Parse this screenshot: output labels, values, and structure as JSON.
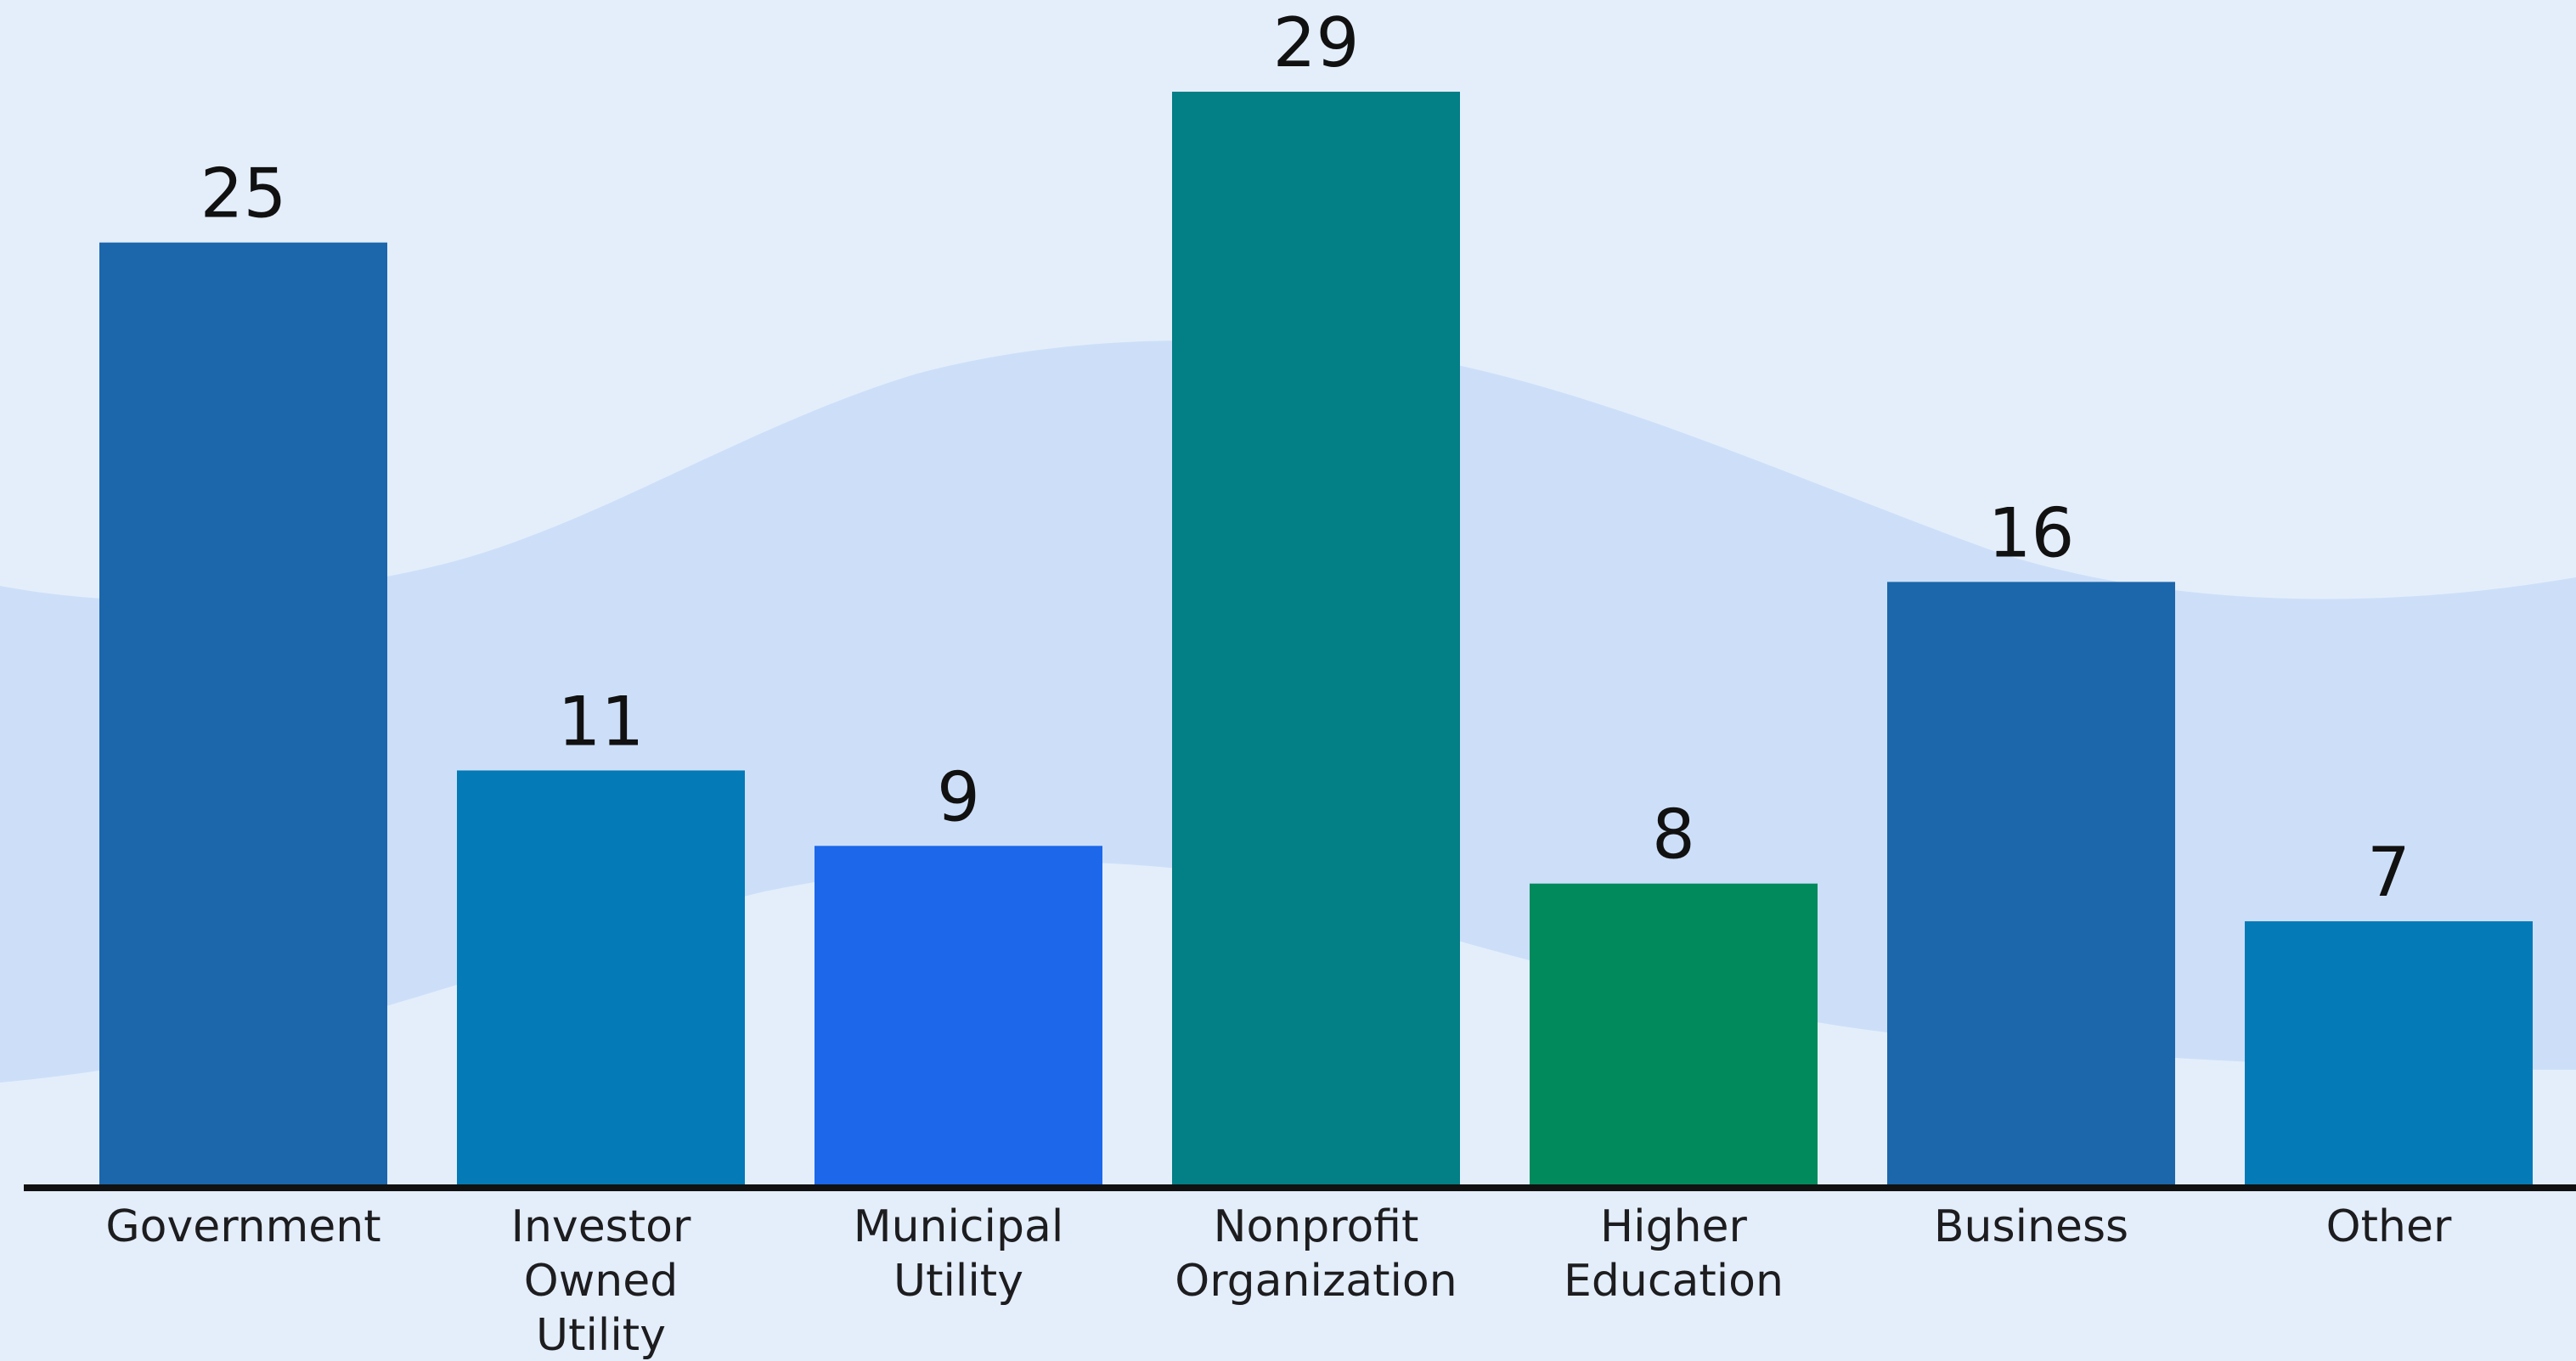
{
  "chart_data": {
    "type": "bar",
    "title": "",
    "xlabel": "",
    "ylabel": "",
    "ylim": [
      0,
      29
    ],
    "grid": false,
    "legend": "none",
    "categories": [
      "Government",
      "Investor Owned Utility",
      "Municipal Utility",
      "Nonprofit Organization",
      "Higher Education",
      "Business",
      "Other"
    ],
    "category_lines": [
      [
        "Government"
      ],
      [
        "Investor",
        "Owned",
        "Utility"
      ],
      [
        "Municipal",
        "Utility"
      ],
      [
        "Nonprofit",
        "Organization"
      ],
      [
        "Higher",
        "Education"
      ],
      [
        "Business"
      ],
      [
        "Other"
      ]
    ],
    "values": [
      25,
      11,
      9,
      29,
      8,
      16,
      7
    ],
    "value_labels": [
      "25",
      "11",
      "9",
      "29",
      "8",
      "16",
      "7"
    ],
    "bar_colors": [
      "#1c66ab",
      "#047ab7",
      "#1c67ea",
      "#037f86",
      "#018a5b",
      "#1c66ab",
      "#047ab7"
    ],
    "background_color": "#e4eefb",
    "wave_color": "#cddff8",
    "axis_color": "#111111"
  }
}
